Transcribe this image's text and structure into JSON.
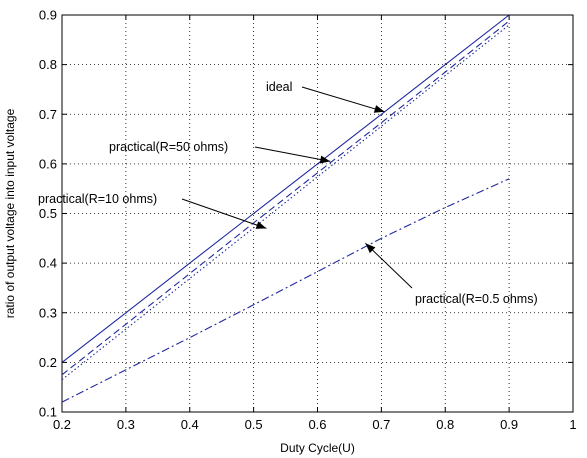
{
  "chart_data": {
    "type": "line",
    "title": "",
    "xlabel": "Duty Cycle(U)",
    "ylabel": "ratio of output voltage into input voltage",
    "xlim": [
      0.2,
      1
    ],
    "ylim": [
      0.1,
      0.9
    ],
    "xticks": [
      "0.2",
      "0.3",
      "0.4",
      "0.5",
      "0.6",
      "0.7",
      "0.8",
      "0.9",
      "1"
    ],
    "yticks": [
      "0.1",
      "0.2",
      "0.3",
      "0.4",
      "0.5",
      "0.6",
      "0.7",
      "0.8",
      "0.9"
    ],
    "grid": true,
    "line_color": "#1f2a9e",
    "series": [
      {
        "style": "solid",
        "x": [
          0.2,
          0.3,
          0.4,
          0.5,
          0.6,
          0.7,
          0.8,
          0.9
        ],
        "y": [
          0.2,
          0.3,
          0.4,
          0.5,
          0.6,
          0.7,
          0.8,
          0.9
        ]
      },
      {
        "style": "dashed",
        "x": [
          0.2,
          0.3,
          0.4,
          0.5,
          0.6,
          0.7,
          0.8,
          0.9
        ],
        "y": [
          0.175,
          0.277,
          0.379,
          0.481,
          0.582,
          0.683,
          0.785,
          0.888
        ]
      },
      {
        "style": "dotted",
        "x": [
          0.2,
          0.3,
          0.4,
          0.5,
          0.6,
          0.7,
          0.8,
          0.9
        ],
        "y": [
          0.165,
          0.267,
          0.369,
          0.471,
          0.574,
          0.676,
          0.778,
          0.88
        ]
      },
      {
        "style": "dashdot",
        "x": [
          0.2,
          0.3,
          0.4,
          0.5,
          0.6,
          0.7,
          0.8,
          0.9
        ],
        "y": [
          0.12,
          0.185,
          0.25,
          0.316,
          0.383,
          0.45,
          0.512,
          0.57
        ]
      }
    ],
    "annotations": [
      {
        "text": "ideal",
        "point": [
          0.705,
          0.705
        ]
      },
      {
        "text": "practical(R=50 ohms)",
        "point": [
          0.62,
          0.605
        ]
      },
      {
        "text": "practical(R=10 ohms)",
        "point": [
          0.52,
          0.47
        ]
      },
      {
        "text": "practical(R=0.5 ohms)",
        "point": [
          0.675,
          0.44
        ]
      }
    ]
  }
}
